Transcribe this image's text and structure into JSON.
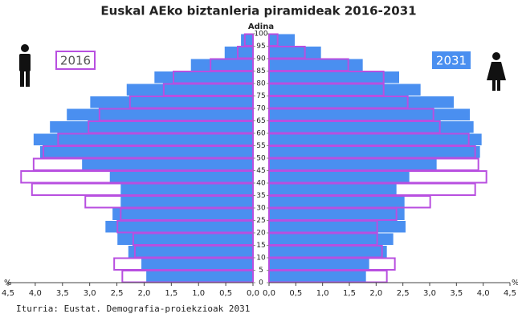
{
  "chart_data": {
    "type": "pyramid",
    "title": "Euskal AEko biztanleria piramideak 2016-2031",
    "axis_label": "Adina",
    "source": "Iturria: Eustat. Demografia-proiekzioak 2031",
    "x_unit": "%",
    "bins": [
      0,
      5,
      10,
      15,
      20,
      25,
      30,
      35,
      40,
      45,
      50,
      55,
      60,
      65,
      70,
      75,
      80,
      85,
      90,
      95,
      100
    ],
    "ylim": [
      0,
      100
    ],
    "yticks": [
      0,
      5,
      10,
      15,
      20,
      25,
      30,
      35,
      40,
      45,
      50,
      55,
      60,
      65,
      70,
      75,
      80,
      85,
      90,
      95,
      100
    ],
    "xlim": [
      0,
      4.5
    ],
    "xticks": [
      {
        "value": 0,
        "label": "0,0"
      },
      {
        "value": 0.5,
        "label": "0,5"
      },
      {
        "value": 1,
        "label": "1,0"
      },
      {
        "value": 1.5,
        "label": "1,5"
      },
      {
        "value": 2,
        "label": "2,0"
      },
      {
        "value": 2.5,
        "label": "2,5"
      },
      {
        "value": 3,
        "label": "3,0"
      },
      {
        "value": 3.5,
        "label": "3,5"
      },
      {
        "value": 4,
        "label": "4,0"
      },
      {
        "value": 4.5,
        "label": "4,5"
      }
    ],
    "grid": false,
    "series": [
      {
        "name": "2031",
        "color": "#4a8ff0",
        "style": "fill",
        "legend": "right",
        "left": [
          1.96,
          2.05,
          2.29,
          2.49,
          2.71,
          2.58,
          2.43,
          2.43,
          2.63,
          3.14,
          3.91,
          4.03,
          3.73,
          3.42,
          2.99,
          2.32,
          1.81,
          1.14,
          0.52,
          0.22
        ],
        "right": [
          1.81,
          1.87,
          2.2,
          2.32,
          2.55,
          2.53,
          2.53,
          2.38,
          2.62,
          3.13,
          3.94,
          3.97,
          3.82,
          3.75,
          3.45,
          2.83,
          2.43,
          1.75,
          0.97,
          0.48
        ]
      },
      {
        "name": "2016",
        "color": "#b84fe0",
        "style": "outline",
        "legend": "left",
        "left": [
          2.4,
          2.55,
          2.17,
          2.2,
          2.49,
          2.43,
          3.08,
          4.06,
          4.26,
          4.03,
          3.85,
          3.58,
          3.02,
          2.82,
          2.26,
          1.64,
          1.46,
          0.78,
          0.28,
          0.15
        ],
        "right": [
          2.2,
          2.35,
          2.11,
          2.02,
          2.02,
          2.38,
          3.01,
          3.85,
          4.06,
          3.91,
          3.85,
          3.73,
          3.19,
          3.07,
          2.59,
          2.14,
          2.14,
          1.48,
          0.67,
          0.16
        ]
      }
    ]
  }
}
